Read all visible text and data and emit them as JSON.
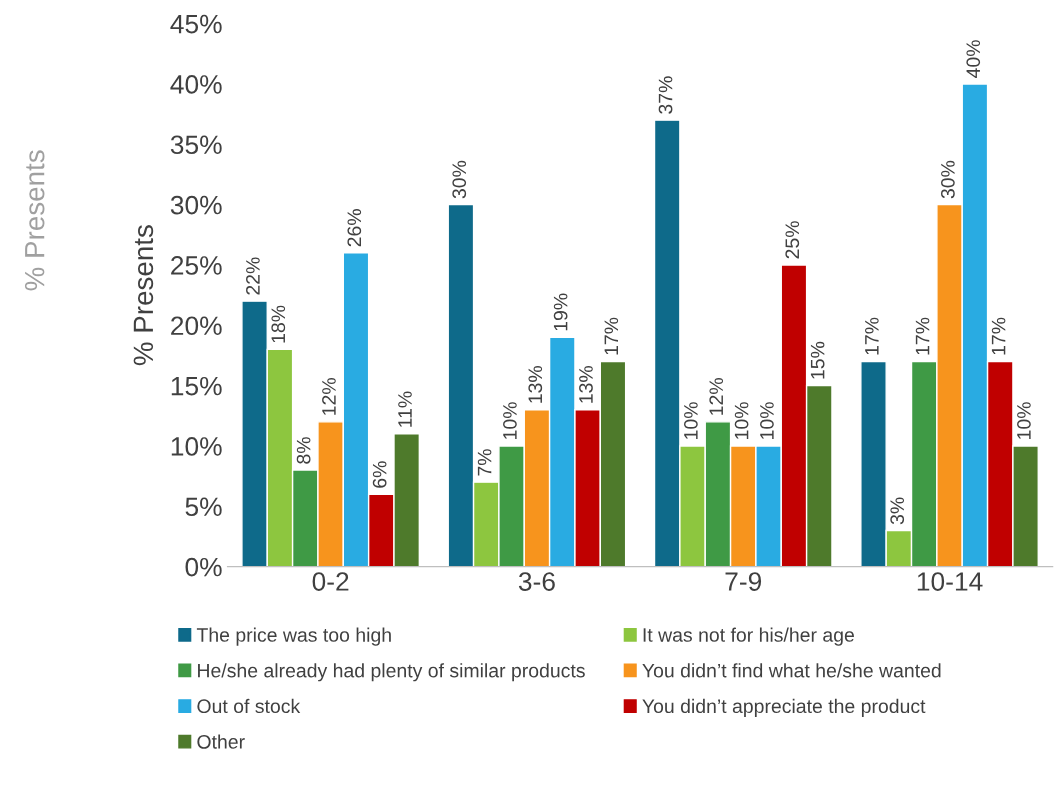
{
  "chart_data": {
    "type": "bar",
    "ylabel": "% Presents",
    "annotations": [
      "% Presents"
    ],
    "categories": [
      "0-2",
      "3-6",
      "7-9",
      "10-14"
    ],
    "series": [
      {
        "name": "The price was too high",
        "color": "#0e6a8a",
        "values": [
          22,
          30,
          37,
          17
        ],
        "value_labels": [
          "22%",
          "30%",
          "37%",
          "17%"
        ]
      },
      {
        "name": "It was not for his/her age",
        "color": "#8dc63f",
        "values": [
          18,
          7,
          10,
          3
        ],
        "value_labels": [
          "18%",
          "7%",
          "10%",
          "3%"
        ]
      },
      {
        "name": "He/she already had plenty of similar products",
        "color": "#3f9a45",
        "values": [
          8,
          10,
          12,
          17
        ],
        "value_labels": [
          "8%",
          "10%",
          "12%",
          "17%"
        ]
      },
      {
        "name": "You didn’t find what he/she wanted",
        "color": "#f7941d",
        "values": [
          12,
          13,
          10,
          30
        ],
        "value_labels": [
          "12%",
          "13%",
          "10%",
          "30%"
        ]
      },
      {
        "name": "Out of stock",
        "color": "#29abe2",
        "values": [
          26,
          19,
          10,
          40
        ],
        "value_labels": [
          "26%",
          "19%",
          "10%",
          "40%"
        ]
      },
      {
        "name": "You didn’t appreciate the product",
        "color": "#c00000",
        "values": [
          6,
          13,
          25,
          17
        ],
        "value_labels": [
          "6%",
          "13%",
          "25%",
          "17%"
        ]
      },
      {
        "name": "Other",
        "color": "#4e7a2b",
        "values": [
          11,
          17,
          15,
          10
        ],
        "value_labels": [
          "11%",
          "17%",
          "15%",
          "10%"
        ]
      }
    ],
    "ylim": [
      0,
      45
    ],
    "yticks": [
      {
        "value": 0,
        "label": "0%"
      },
      {
        "value": 5,
        "label": "5%"
      },
      {
        "value": 10,
        "label": "10%"
      },
      {
        "value": 15,
        "label": "15%"
      },
      {
        "value": 20,
        "label": "20%"
      },
      {
        "value": 25,
        "label": "25%"
      },
      {
        "value": 30,
        "label": "30%"
      },
      {
        "value": 35,
        "label": "35%"
      },
      {
        "value": 40,
        "label": "40%"
      },
      {
        "value": 45,
        "label": "45%"
      }
    ],
    "grid": false,
    "legend": "bottom"
  }
}
